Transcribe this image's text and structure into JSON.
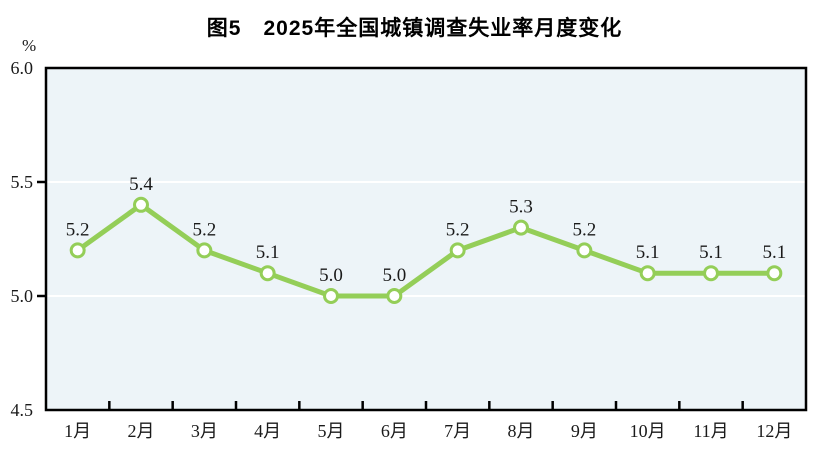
{
  "chart_data": {
    "type": "line",
    "title": "图5　2025年全国城镇调查失业率月度变化",
    "ylabel": "%",
    "categories": [
      "1月",
      "2月",
      "3月",
      "4月",
      "5月",
      "6月",
      "7月",
      "8月",
      "9月",
      "10月",
      "11月",
      "12月"
    ],
    "series": [
      {
        "name": "全国城镇调查失业率",
        "values": [
          5.2,
          5.4,
          5.2,
          5.1,
          5.0,
          5.0,
          5.2,
          5.3,
          5.2,
          5.1,
          5.1,
          5.1
        ]
      }
    ],
    "data_labels": [
      "5.2",
      "5.4",
      "5.2",
      "5.1",
      "5.0",
      "5.0",
      "5.2",
      "5.3",
      "5.2",
      "5.1",
      "5.1",
      "5.1"
    ],
    "ylim": [
      4.5,
      6.0
    ],
    "ytick_labels": [
      "6.0",
      "5.5",
      "5.0",
      "4.5"
    ],
    "ytick_values": [
      6.0,
      5.5,
      5.0,
      4.5
    ],
    "grid_values": [
      5.5,
      5.0
    ],
    "grid": "horizontal",
    "legend": "none",
    "colors": {
      "line": "#94CE58",
      "marker_fill": "#FFFFFF",
      "marker_stroke": "#94CE58",
      "plot_background": "#EDF4F8",
      "gridline": "#FFFFFF",
      "axis_frame": "#000000",
      "text": "#1A1A1A",
      "page_background": "#FFFFFF"
    }
  }
}
